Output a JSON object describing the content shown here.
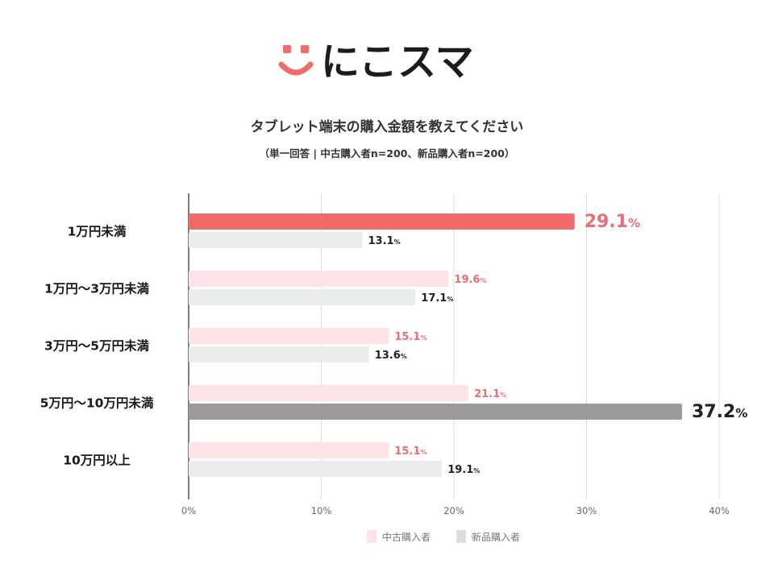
{
  "brand": {
    "name": "にこスマ",
    "color": "#f26b6b"
  },
  "colors": {
    "used_bar": "#fde2e6",
    "used_highlight": "#f26b6b",
    "new_bar": "#ececec",
    "new_highlight": "#9a9a9a",
    "used_label": "#ee6b74",
    "new_label": "#222222",
    "grid": "#dcdcdc",
    "axis": "#555555"
  },
  "chart_data": {
    "type": "bar",
    "orientation": "horizontal",
    "title": "タブレット端末の購入金額を教えてください",
    "subtitle": "（単一回答 | 中古購入者n=200、新品購入者n=200）",
    "categories": [
      "1万円未満",
      "1万円〜3万円未満",
      "3万円〜5万円未満",
      "5万円〜10万円未満",
      "10万円以上"
    ],
    "series": [
      {
        "name": "中古購入者",
        "values": [
          29.1,
          19.6,
          15.1,
          21.1,
          15.1
        ],
        "highlight_index": 0
      },
      {
        "name": "新品購入者",
        "values": [
          13.1,
          17.1,
          13.6,
          37.2,
          19.1
        ],
        "highlight_index": 3
      }
    ],
    "value_unit": "%",
    "xlim": [
      0,
      40
    ],
    "xticks": [
      0,
      10,
      20,
      30,
      40
    ],
    "xtick_labels": [
      "0%",
      "10%",
      "20%",
      "30%",
      "40%"
    ],
    "grid": true,
    "legend_position": "bottom"
  }
}
